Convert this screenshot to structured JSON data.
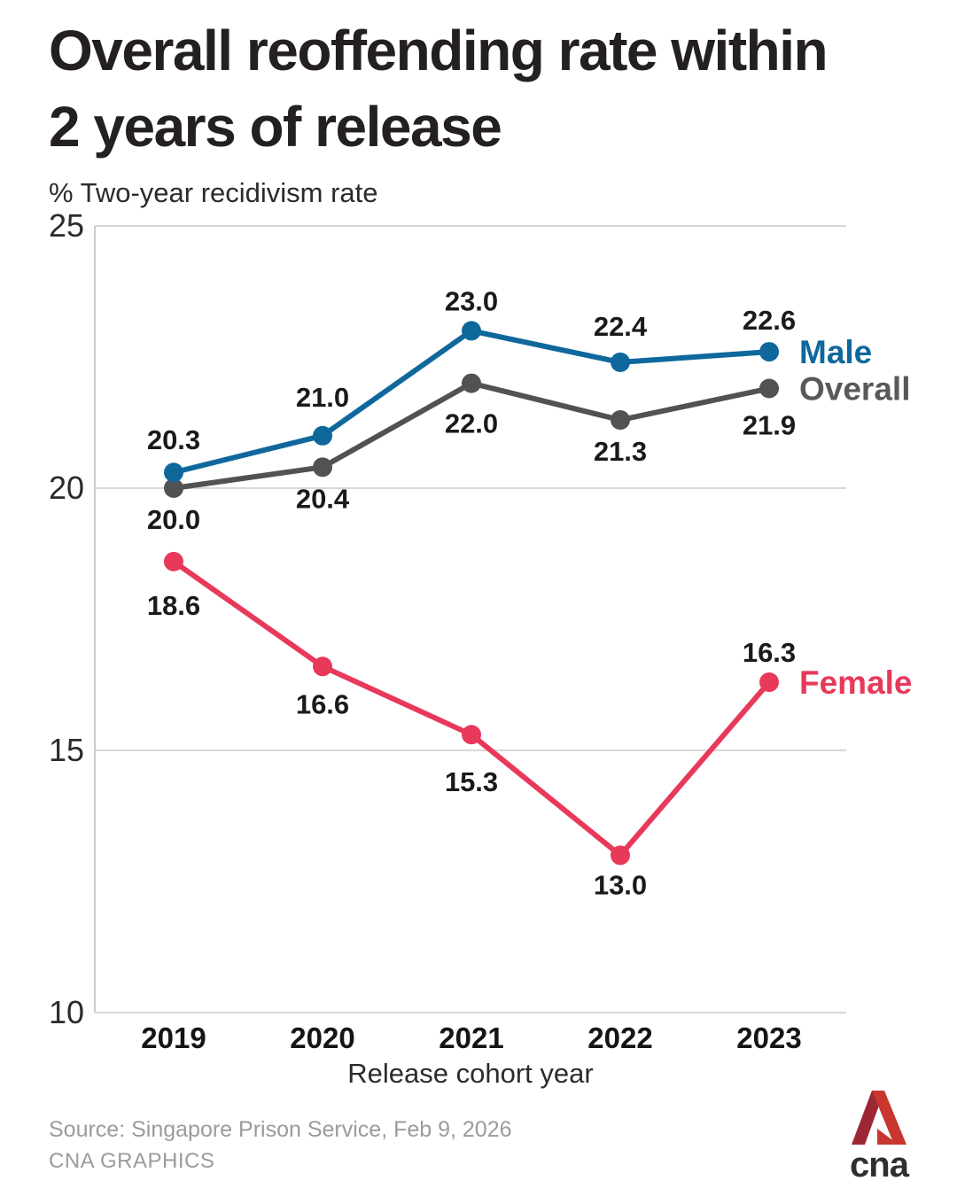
{
  "title": "Overall reoffending rate within 2 years of release",
  "chart_data": {
    "type": "line",
    "title": "Overall reoffending rate within 2 years of release",
    "ylabel": "% Two-year recidivism rate",
    "xlabel": "Release cohort year",
    "categories": [
      "2019",
      "2020",
      "2021",
      "2022",
      "2023"
    ],
    "series": [
      {
        "name": "Overall",
        "color": "#515254",
        "label_color": "#58595b",
        "values": [
          20.0,
          20.4,
          22.0,
          21.3,
          21.9
        ],
        "value_label_position": "below"
      },
      {
        "name": "Male",
        "color": "#0f689c",
        "label_color": "#0f689c",
        "values": [
          20.3,
          21.0,
          23.0,
          22.4,
          22.6
        ],
        "value_label_position": "above"
      },
      {
        "name": "Female",
        "color": "#e8395b",
        "label_color": "#e8395b",
        "values": [
          18.6,
          16.6,
          15.3,
          13.0,
          16.3
        ],
        "value_label_position": "below",
        "value_label_position_overrides": {
          "4": "above"
        }
      }
    ],
    "ylim": [
      10,
      25
    ],
    "yticks": [
      25,
      20,
      15,
      10
    ],
    "grid": "horizontal",
    "legend_position": "end-of-line",
    "value_labels": true,
    "value_label_decimals": 1
  },
  "colors": {
    "background": "#ffffff",
    "title": "#242021",
    "value_label": "#1a1a1a",
    "tick_label": "#2b2b2b",
    "year_label": "#151515",
    "grid": "#d8d8d8",
    "axis": "#cccccc",
    "source": "#9b9b9b"
  },
  "footer": {
    "source": "Source: Singapore Prison Service, Feb 9, 2026",
    "credit": "CNA GRAPHICS"
  },
  "logo": {
    "text": "cna",
    "red_dark": "#9c2734",
    "red_bright": "#c8372f",
    "text_color": "#2f2f31"
  }
}
